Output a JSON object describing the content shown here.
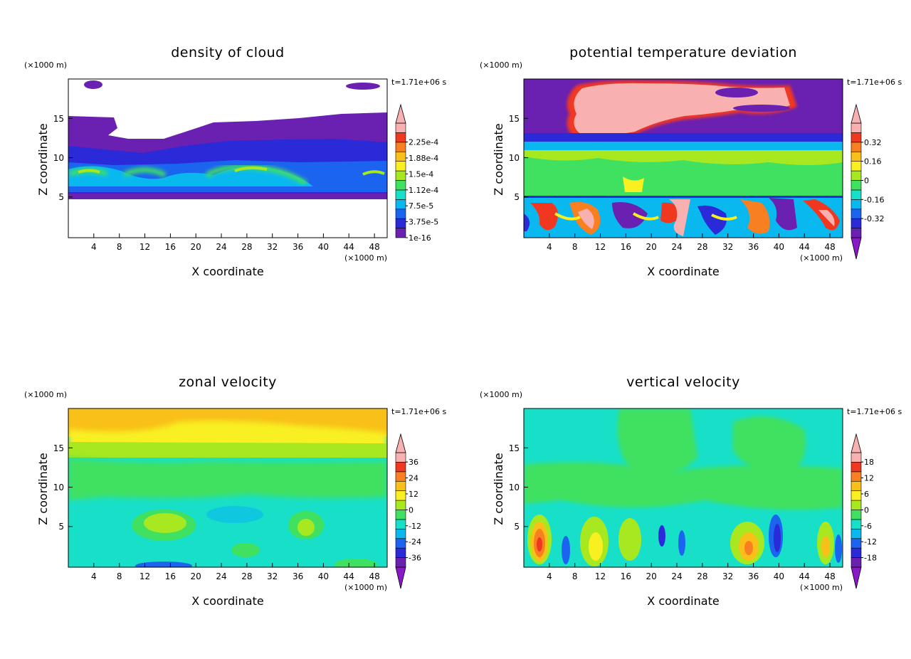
{
  "chart_data": [
    {
      "type": "heatmap",
      "title": "density of cloud",
      "xlabel": "X coordinate",
      "ylabel": "Z coordinate",
      "x_unit": "(×1000 m)",
      "y_unit": "(×1000 m)",
      "time": "t=1.71e+06 s",
      "xlim": [
        0,
        50
      ],
      "ylim": [
        0,
        19.5
      ],
      "xticks": [
        4,
        8,
        12,
        16,
        20,
        24,
        28,
        32,
        36,
        40,
        44,
        48
      ],
      "yticks": [
        5,
        10,
        15
      ],
      "colorbar_labels": [
        "1e-16",
        "3.75e-5",
        "7.5e-5",
        "1.12e-4",
        "1.5e-4",
        "1.88e-4",
        "2.25e-4"
      ],
      "colorbar_colors": [
        "#6a20b0",
        "#2a2ad8",
        "#1a64f0",
        "#0ab8f0",
        "#18e0c8",
        "#40e060",
        "#a8e820",
        "#f8f020",
        "#f8c018",
        "#f88020",
        "#f03820",
        "#f8b0b0"
      ],
      "colorbar_arrows": "top"
    },
    {
      "type": "heatmap",
      "title": "potential temperature deviation",
      "xlabel": "X coordinate",
      "ylabel": "Z coordinate",
      "x_unit": "(×1000 m)",
      "y_unit": "(×1000 m)",
      "time": "t=1.71e+06 s",
      "xlim": [
        0,
        50
      ],
      "ylim": [
        0,
        19.5
      ],
      "xticks": [
        4,
        8,
        12,
        16,
        20,
        24,
        28,
        32,
        36,
        40,
        44,
        48
      ],
      "yticks": [
        5,
        10,
        15
      ],
      "colorbar_labels": [
        "-0.32",
        "-0.16",
        "0",
        "0.16",
        "0.32"
      ],
      "colorbar_colors": [
        "#6a20b0",
        "#2a2ad8",
        "#1a64f0",
        "#0ab8f0",
        "#18e0c8",
        "#40e060",
        "#a8e820",
        "#f8f020",
        "#f8c018",
        "#f88020",
        "#f03820",
        "#f8b0b0"
      ],
      "colorbar_arrows": "both"
    },
    {
      "type": "heatmap",
      "title": "zonal velocity",
      "xlabel": "X coordinate",
      "ylabel": "Z coordinate",
      "x_unit": "(×1000 m)",
      "y_unit": "(×1000 m)",
      "time": "t=1.71e+06 s",
      "xlim": [
        0,
        50
      ],
      "ylim": [
        0,
        19.5
      ],
      "xticks": [
        4,
        8,
        12,
        16,
        20,
        24,
        28,
        32,
        36,
        40,
        44,
        48
      ],
      "yticks": [
        5,
        10,
        15
      ],
      "colorbar_labels": [
        "-36",
        "-24",
        "-12",
        "0",
        "12",
        "24",
        "36"
      ],
      "colorbar_colors": [
        "#6a20b0",
        "#2a2ad8",
        "#1a64f0",
        "#0ab8f0",
        "#18e0c8",
        "#40e060",
        "#a8e820",
        "#f8f020",
        "#f8c018",
        "#f88020",
        "#f03820",
        "#f8b0b0"
      ],
      "colorbar_arrows": "both"
    },
    {
      "type": "heatmap",
      "title": "vertical velocity",
      "xlabel": "X coordinate",
      "ylabel": "Z coordinate",
      "x_unit": "(×1000 m)",
      "y_unit": "(×1000 m)",
      "time": "t=1.71e+06 s",
      "xlim": [
        0,
        50
      ],
      "ylim": [
        0,
        19.5
      ],
      "xticks": [
        4,
        8,
        12,
        16,
        20,
        24,
        28,
        32,
        36,
        40,
        44,
        48
      ],
      "yticks": [
        5,
        10,
        15
      ],
      "colorbar_labels": [
        "-18",
        "-12",
        "-6",
        "0",
        "6",
        "12",
        "18"
      ],
      "colorbar_colors": [
        "#6a20b0",
        "#2a2ad8",
        "#1a64f0",
        "#0ab8f0",
        "#18e0c8",
        "#40e060",
        "#a8e820",
        "#f8f020",
        "#f8c018",
        "#f88020",
        "#f03820",
        "#f8b0b0"
      ],
      "colorbar_arrows": "both"
    }
  ]
}
